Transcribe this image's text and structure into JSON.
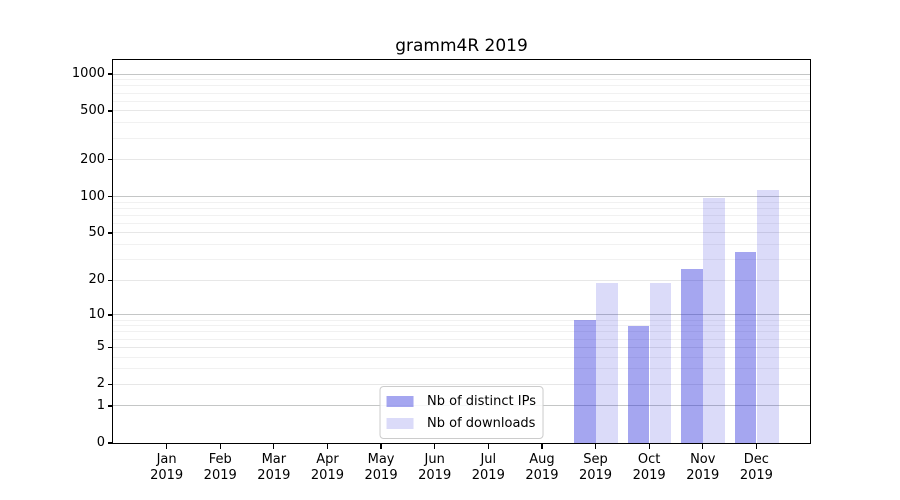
{
  "chart_data": {
    "type": "bar",
    "title": "gramm4R 2019",
    "categories": [
      "Jan",
      "Feb",
      "Mar",
      "Apr",
      "May",
      "Jun",
      "Jul",
      "Aug",
      "Sep",
      "Oct",
      "Nov",
      "Dec"
    ],
    "year_label": "2019",
    "series": [
      {
        "name": "Nb of distinct IPs",
        "color": "rgba(30,33,218,0.40)",
        "values": [
          0,
          0,
          0,
          0,
          0,
          0,
          0,
          0,
          9,
          8,
          25,
          35
        ]
      },
      {
        "name": "Nb of downloads",
        "color": "rgba(15,15,215,0.15)",
        "values": [
          0,
          0,
          0,
          0,
          0,
          0,
          0,
          0,
          19,
          19,
          97,
          113
        ]
      }
    ],
    "yscale": "log1p",
    "ymax": 1300,
    "yticks": [
      1000,
      500,
      200,
      100,
      50,
      20,
      10,
      5,
      2,
      1,
      0
    ],
    "grid": true,
    "grid_major_at": [
      1,
      10,
      100,
      1000
    ],
    "grid_mid_at": [
      2,
      5,
      20,
      50,
      200,
      500
    ],
    "legend_position": "lower center",
    "colors": {
      "spine": "#000000",
      "grid_major": "#c4c6c6",
      "grid_mid": "#e7e7e7",
      "grid_minor": "#f1f1f1",
      "text": "#000000",
      "legend_border": "#cccccc"
    }
  }
}
